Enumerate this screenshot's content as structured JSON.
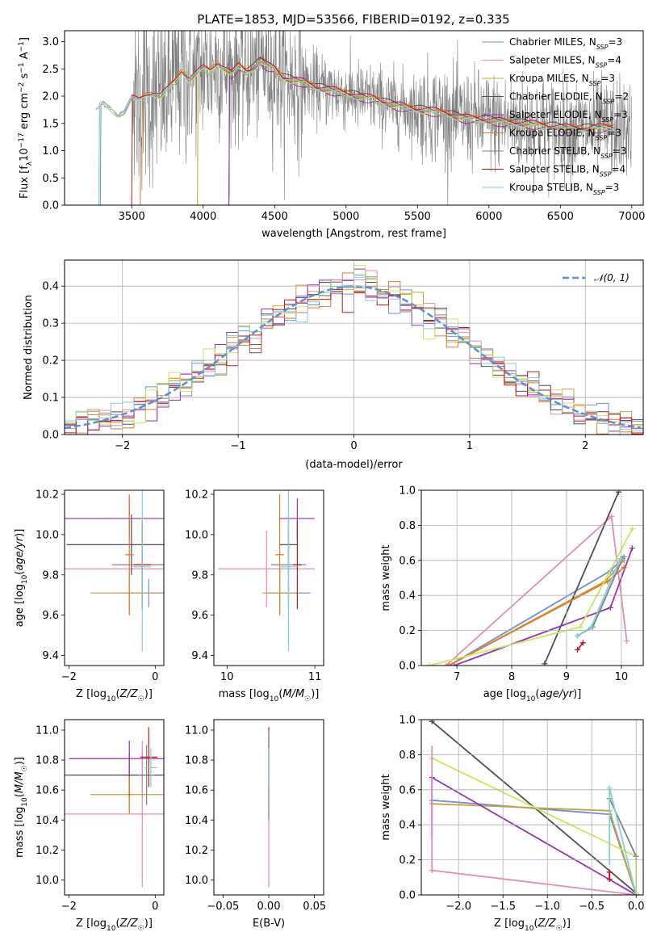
{
  "figure_title": "PLATE=1853, MJD=53566, FIBERID=0192, z=0.335",
  "colors": {
    "Chabrier MILES": "#6d8fd6",
    "Salpeter MILES": "#e88ab8",
    "Kroupa MILES": "#c9a23c",
    "Chabrier ELODIE": "#4f4f4f",
    "Salpeter ELODIE": "#9b30b0",
    "Kroupa ELODIE": "#e07a2e",
    "Chabrier STELIB": "#808080",
    "Salpeter STELIB": "#c01818",
    "Kroupa STELIB": "#80d0d8",
    "data": "#808080",
    "normal": "#5b8fd6"
  },
  "chart_data": [
    {
      "type": "line",
      "panel": "spectrum",
      "xlabel": "wavelength [Angstrom, rest frame]",
      "ylabel": "Flux [f_λ 10^-17 erg cm^-2 s^-1 A^-1]",
      "xlim": [
        3030,
        7080
      ],
      "ylim": [
        0,
        3.2
      ],
      "xticks": [
        3500,
        4000,
        4500,
        5000,
        5500,
        6000,
        6500,
        7000
      ],
      "yticks": [
        "0.0",
        "0.5",
        "1.0",
        "1.5",
        "2.0",
        "2.5",
        "3.0"
      ],
      "grid": false,
      "legend_position": "top-right",
      "legend": [
        {
          "name": "Chabrier MILES",
          "sub": "SSP",
          "n": "3"
        },
        {
          "name": "Salpeter MILES",
          "sub": "SSP",
          "n": "4"
        },
        {
          "name": "Kroupa MILES",
          "sub": "SSP",
          "n": "3"
        },
        {
          "name": "Chabrier ELODIE",
          "sub": "SSP",
          "n": "2"
        },
        {
          "name": "Salpeter ELODIE",
          "sub": "SSP",
          "n": "3"
        },
        {
          "name": "Kroupa ELODIE",
          "sub": "SSP",
          "n": "3"
        },
        {
          "name": "Chabrier STELIB",
          "sub": "SSP",
          "n": "3"
        },
        {
          "name": "Salpeter STELIB",
          "sub": "SSP",
          "n": "4"
        },
        {
          "name": "Kroupa STELIB",
          "sub": "SSP",
          "n": "3"
        }
      ],
      "continuum": {
        "x": [
          3250,
          3300,
          3350,
          3400,
          3450,
          3500,
          3550,
          3600,
          3650,
          3700,
          3750,
          3800,
          3850,
          3900,
          3950,
          4000,
          4050,
          4100,
          4150,
          4200,
          4250,
          4300,
          4350,
          4400,
          4450,
          4500,
          4550,
          4600,
          4700,
          4800,
          4900,
          5000,
          5100,
          5200,
          5300,
          5400,
          5500,
          5600,
          5700,
          5800,
          5900,
          6000,
          6100,
          6200,
          6300,
          6400,
          6500,
          6600,
          6700,
          6800,
          6880
        ],
        "y": [
          1.75,
          1.85,
          1.78,
          1.65,
          1.72,
          1.95,
          1.9,
          2.0,
          2.05,
          2.0,
          2.1,
          2.25,
          2.45,
          2.3,
          2.4,
          2.5,
          2.45,
          2.6,
          2.5,
          2.4,
          2.55,
          2.45,
          2.5,
          2.65,
          2.55,
          2.5,
          2.35,
          2.3,
          2.25,
          2.15,
          2.1,
          2.05,
          1.98,
          1.95,
          1.85,
          1.8,
          1.75,
          1.72,
          1.68,
          1.6,
          1.58,
          1.55,
          1.52,
          1.5,
          1.48,
          1.45,
          1.42,
          1.4,
          1.4,
          1.42,
          1.42
        ]
      },
      "model_starts": [
        {
          "name": "Chabrier MILES",
          "x": 3280
        },
        {
          "name": "Chabrier ELODIE",
          "x": 4180
        },
        {
          "name": "Salpeter ELODIE",
          "x": 4180
        },
        {
          "name": "Kroupa ELODIE",
          "x": 3560
        },
        {
          "name": "Kroupa MILES",
          "x": 3960
        },
        {
          "name": "Salpeter STELIB",
          "x": 3500
        }
      ],
      "noisy_data_range": [
        3510,
        7000
      ]
    },
    {
      "type": "line",
      "panel": "residual-histogram",
      "xlabel": "(data-model)/error",
      "ylabel": "Normed distribution",
      "xlim": [
        -2.5,
        2.5
      ],
      "ylim": [
        0,
        0.47
      ],
      "xticks": [
        "−2",
        "−1",
        "0",
        "1",
        "2"
      ],
      "yticks": [
        "0.0",
        "0.1",
        "0.2",
        "0.3",
        "0.4"
      ],
      "grid": true,
      "legend_position": "top-right",
      "legend_label": "𝒩(0, 1)",
      "normal_curve": {
        "mean": 0,
        "sigma": 1
      },
      "bin_width": 0.1
    },
    {
      "type": "scatter",
      "panel": "age-vs-Z",
      "xlabel": "Z [log10(Z/Z☉)]",
      "ylabel": "age [log10(age/yr)]",
      "xlim": [
        -2.1,
        0.2
      ],
      "ylim": [
        9.35,
        10.22
      ],
      "xticks": [
        "−2",
        "0"
      ],
      "yticks": [
        "9.4",
        "9.6",
        "9.8",
        "10.0",
        "10.2"
      ],
      "points": [
        {
          "s": "Chabrier MILES",
          "x": -0.15,
          "y": 9.71,
          "xe": 0.7,
          "ye": 0.07
        },
        {
          "s": "Salpeter MILES",
          "x": -0.3,
          "y": 9.83,
          "xe": 1.9,
          "ye": 0.19
        },
        {
          "s": "Kroupa MILES",
          "x": -0.6,
          "y": 9.71,
          "xe": 0.9,
          "ye": 0.11
        },
        {
          "s": "Chabrier ELODIE",
          "x": -0.55,
          "y": 9.95,
          "xe": 1.5,
          "ye": 0.15
        },
        {
          "s": "Salpeter ELODIE",
          "x": -0.6,
          "y": 10.08,
          "xe": 1.5,
          "ye": 0.1
        },
        {
          "s": "Kroupa ELODIE",
          "x": -0.6,
          "y": 9.9,
          "xe": 0.1,
          "ye": 0.3
        },
        {
          "s": "Chabrier STELIB",
          "x": -0.3,
          "y": 9.85,
          "xe": 0.7,
          "ye": 0.2
        },
        {
          "s": "Salpeter STELIB",
          "x": -0.3,
          "y": 9.85,
          "xe": 0.2,
          "ye": 0.22
        },
        {
          "s": "Kroupa STELIB",
          "x": -0.3,
          "y": 9.84,
          "xe": 0.2,
          "ye": 0.42
        }
      ]
    },
    {
      "type": "scatter",
      "panel": "age-vs-mass",
      "xlabel": "mass [log10(M/M☉)]",
      "ylabel": "",
      "xlim": [
        9.85,
        11.1
      ],
      "ylim": [
        9.35,
        10.22
      ],
      "xticks": [
        "10",
        "11"
      ],
      "yticks": [
        "9.4",
        "9.6",
        "9.8",
        "10.0",
        "10.2"
      ],
      "points": [
        {
          "s": "Chabrier MILES",
          "x": 10.7,
          "y": 9.71,
          "xe": 0.25,
          "ye": 0.07
        },
        {
          "s": "Salpeter MILES",
          "x": 10.45,
          "y": 9.83,
          "xe": 0.55,
          "ye": 0.19
        },
        {
          "s": "Kroupa MILES",
          "x": 10.6,
          "y": 9.71,
          "xe": 0.2,
          "ye": 0.11
        },
        {
          "s": "Chabrier ELODIE",
          "x": 10.7,
          "y": 9.95,
          "xe": 0.1,
          "ye": 0.15
        },
        {
          "s": "Salpeter ELODIE",
          "x": 10.8,
          "y": 10.08,
          "xe": 0.2,
          "ye": 0.1
        },
        {
          "s": "Kroupa ELODIE",
          "x": 10.6,
          "y": 9.9,
          "xe": 0.05,
          "ye": 0.3
        },
        {
          "s": "Chabrier STELIB",
          "x": 10.7,
          "y": 9.85,
          "xe": 0.2,
          "ye": 0.2
        },
        {
          "s": "Salpeter STELIB",
          "x": 10.8,
          "y": 9.85,
          "xe": 0.05,
          "ye": 0.22
        },
        {
          "s": "Kroupa STELIB",
          "x": 10.7,
          "y": 9.84,
          "xe": 0.1,
          "ye": 0.42
        }
      ]
    },
    {
      "type": "line",
      "panel": "weight-vs-age",
      "xlabel": "age [log10(age/yr)]",
      "ylabel": "mass weight",
      "xlim": [
        6.35,
        10.4
      ],
      "ylim": [
        0,
        1
      ],
      "xticks": [
        "7",
        "8",
        "9",
        "10"
      ],
      "yticks": [
        "0.0",
        "0.2",
        "0.4",
        "0.6",
        "0.8",
        "1.0"
      ],
      "grid": true,
      "series": [
        {
          "s": "Chabrier MILES",
          "x": [
            6.85,
            9.8,
            10.05
          ],
          "y": [
            0.0,
            0.54,
            0.62
          ]
        },
        {
          "s": "Salpeter MILES",
          "x": [
            6.8,
            9.82,
            10.1
          ],
          "y": [
            0.0,
            0.85,
            0.14
          ]
        },
        {
          "s": "Kroupa MILES",
          "x": [
            6.85,
            9.7,
            10.05
          ],
          "y": [
            0.0,
            0.48,
            0.6
          ]
        },
        {
          "s": "Chabrier ELODIE",
          "x": [
            8.6,
            9.95
          ],
          "y": [
            0.01,
            0.99
          ]
        },
        {
          "s": "Salpeter ELODIE",
          "x": [
            6.95,
            9.8,
            10.2
          ],
          "y": [
            0.0,
            0.33,
            0.67
          ]
        },
        {
          "s": "Kroupa ELODIE",
          "x": [
            6.85,
            9.75,
            10.05
          ],
          "y": [
            0.0,
            0.48,
            0.56
          ]
        },
        {
          "s": "Chabrier STELIB",
          "x": [
            9.2,
            9.48,
            10.02
          ],
          "y": [
            0.17,
            0.22,
            0.61
          ]
        },
        {
          "s": "Salpeter STELIB",
          "x": [
            9.2,
            9.3
          ],
          "y": [
            0.09,
            0.13
          ]
        },
        {
          "s": "Kroupa STELIB",
          "x": [
            9.2,
            9.45,
            9.98
          ],
          "y": [
            0.17,
            0.22,
            0.61
          ]
        },
        {
          "s": "lime",
          "x": [
            6.5,
            9.25,
            10.2
          ],
          "y": [
            0.0,
            0.22,
            0.78
          ]
        }
      ]
    },
    {
      "type": "scatter",
      "panel": "mass-vs-Z",
      "xlabel": "Z [log10(Z/Z☉)]",
      "ylabel": "mass [log10(M/M☉)]",
      "xlim": [
        -2.1,
        0.2
      ],
      "ylim": [
        9.9,
        11.07
      ],
      "xticks": [
        "−2",
        "0"
      ],
      "yticks": [
        "10.0",
        "10.2",
        "10.4",
        "10.6",
        "10.8",
        "11.0"
      ],
      "points": [
        {
          "s": "Chabrier MILES",
          "x": -0.3,
          "y": 10.7,
          "xe": 0.4,
          "ye": 0.15
        },
        {
          "s": "Salpeter MILES",
          "x": -0.3,
          "y": 10.44,
          "xe": 1.8,
          "ye": 0.49
        },
        {
          "s": "Kroupa MILES",
          "x": -0.6,
          "y": 10.57,
          "xe": 0.9,
          "ye": 0.13
        },
        {
          "s": "Chabrier ELODIE",
          "x": -0.6,
          "y": 10.7,
          "xe": 1.5,
          "ye": 0.15
        },
        {
          "s": "Salpeter ELODIE",
          "x": -0.6,
          "y": 10.81,
          "xe": 1.4,
          "ye": 0.12
        },
        {
          "s": "Kroupa ELODIE",
          "x": -0.6,
          "y": 10.57,
          "xe": 0.05,
          "ye": 0.12
        },
        {
          "s": "Chabrier STELIB",
          "x": -0.2,
          "y": 10.7,
          "xe": 0.2,
          "ye": 0.2
        },
        {
          "s": "Salpeter STELIB",
          "x": -0.15,
          "y": 10.82,
          "xe": 0.2,
          "ye": 0.2
        },
        {
          "s": "Kroupa STELIB",
          "x": -0.1,
          "y": 10.75,
          "xe": 0.15,
          "ye": 0.13
        }
      ]
    },
    {
      "type": "scatter",
      "panel": "mass-vs-EBV",
      "xlabel": "E(B-V)",
      "ylabel": "",
      "xlim": [
        -0.06,
        0.06
      ],
      "ylim": [
        9.9,
        11.07
      ],
      "xticks": [
        "−0.05",
        "0.00",
        "0.05"
      ],
      "yticks": [
        "10.0",
        "10.2",
        "10.4",
        "10.6",
        "10.8",
        "11.0"
      ],
      "points": [
        {
          "s": "Salpeter MILES",
          "x": 0.0,
          "y": 10.44,
          "xe": 0,
          "ye": 0.49
        },
        {
          "s": "Salpeter STELIB",
          "x": 0.0,
          "y": 10.82,
          "xe": 0,
          "ye": 0.2
        },
        {
          "s": "Chabrier STELIB",
          "x": 0.0,
          "y": 10.7,
          "xe": 0,
          "ye": 0.3
        },
        {
          "s": "Kroupa STELIB",
          "x": 0.0,
          "y": 10.75,
          "xe": 0,
          "ye": 0.13
        }
      ]
    },
    {
      "type": "line",
      "panel": "weight-vs-Z",
      "xlabel": "Z [log10(Z/Z☉)]",
      "ylabel": "mass weight",
      "xlim": [
        -2.42,
        0.08
      ],
      "ylim": [
        0,
        1
      ],
      "xticks": [
        "−2.0",
        "−1.5",
        "−1.0",
        "−0.5",
        "0.0"
      ],
      "yticks": [
        "0.0",
        "0.2",
        "0.4",
        "0.6",
        "0.8",
        "1.0"
      ],
      "grid": true,
      "series": [
        {
          "s": "Chabrier MILES",
          "x": [
            -2.3,
            -0.3,
            0.0
          ],
          "y": [
            0.54,
            0.46,
            0.0
          ]
        },
        {
          "s": "Salpeter MILES",
          "x": [
            -2.3,
            0.0
          ],
          "y": [
            0.14,
            0.0
          ]
        },
        {
          "s": "Kroupa MILES",
          "x": [
            -2.3,
            -0.3,
            0.0
          ],
          "y": [
            0.52,
            0.48,
            0.0
          ]
        },
        {
          "s": "Chabrier ELODIE",
          "x": [
            -2.3,
            0.0
          ],
          "y": [
            0.99,
            0.01
          ]
        },
        {
          "s": "Salpeter ELODIE",
          "x": [
            -2.3,
            0.0
          ],
          "y": [
            0.67,
            0.0
          ]
        },
        {
          "s": "lime",
          "x": [
            -2.3,
            0.0,
            0.0
          ],
          "y": [
            0.78,
            0.22,
            0.01
          ]
        },
        {
          "s": "Chabrier STELIB",
          "x": [
            -0.3,
            0.0
          ],
          "y": [
            0.55,
            0.22
          ]
        },
        {
          "s": "Salpeter STELIB",
          "x": [
            -0.3,
            -0.3
          ],
          "y": [
            0.09,
            0.13
          ]
        },
        {
          "s": "Kroupa STELIB",
          "x": [
            -0.3,
            0.0
          ],
          "y": [
            0.61,
            0.0
          ]
        }
      ],
      "verticals": [
        {
          "s": "Salpeter ELODIE",
          "x": -2.3,
          "y0": 0.33,
          "y1": 0.67
        },
        {
          "s": "Salpeter MILES",
          "x": -2.3,
          "y0": 0.14,
          "y1": 0.85
        },
        {
          "s": "Kroupa STELIB",
          "x": -0.3,
          "y0": 0.17,
          "y1": 0.61
        },
        {
          "s": "Salpeter STELIB",
          "x": -0.3,
          "y0": 0.09,
          "y1": 0.13
        }
      ]
    }
  ]
}
